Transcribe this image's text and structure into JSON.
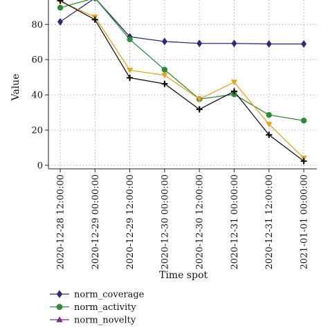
{
  "chart_data": {
    "type": "line",
    "title": "",
    "xlabel": "Time spot",
    "ylabel": "Value",
    "categories": [
      "2020-12-28 12:00:00",
      "2020-12-29 00:00:00",
      "2020-12-29 12:00:00",
      "2020-12-30 00:00:00",
      "2020-12-30 12:00:00",
      "2020-12-31 00:00:00",
      "2020-12-31 12:00:00",
      "2021-01-01 00:00:00"
    ],
    "ylim": [
      -2,
      100
    ],
    "yticks": [
      0,
      20,
      40,
      60,
      80
    ],
    "grid": true,
    "legend_position": "bottom-left",
    "series": [
      {
        "name": "norm_coverage",
        "color": "#2c2a7c",
        "marker": "diamond",
        "values": [
          81.5,
          95,
          73,
          70.3,
          69.2,
          69.2,
          68.9,
          68.9
        ]
      },
      {
        "name": "norm_activity",
        "color": "#2e8b3c",
        "marker": "circle",
        "values": [
          89.5,
          95,
          71.5,
          54.3,
          37.6,
          40.3,
          28.6,
          25.4
        ]
      },
      {
        "name": "norm_novelty",
        "color": "#7b2d8e",
        "marker": "triangle-up",
        "values": null
      },
      {
        "name": "",
        "color": "#e6a21e",
        "marker": "triangle-down",
        "values": [
          93,
          84.2,
          54,
          51.2,
          37.6,
          47.2,
          23.3,
          4.1
        ]
      },
      {
        "name": "",
        "color": "#111111",
        "marker": "plus",
        "values": [
          93.5,
          82.7,
          49.7,
          46.3,
          31.8,
          42,
          17.3,
          2.4
        ]
      }
    ]
  }
}
